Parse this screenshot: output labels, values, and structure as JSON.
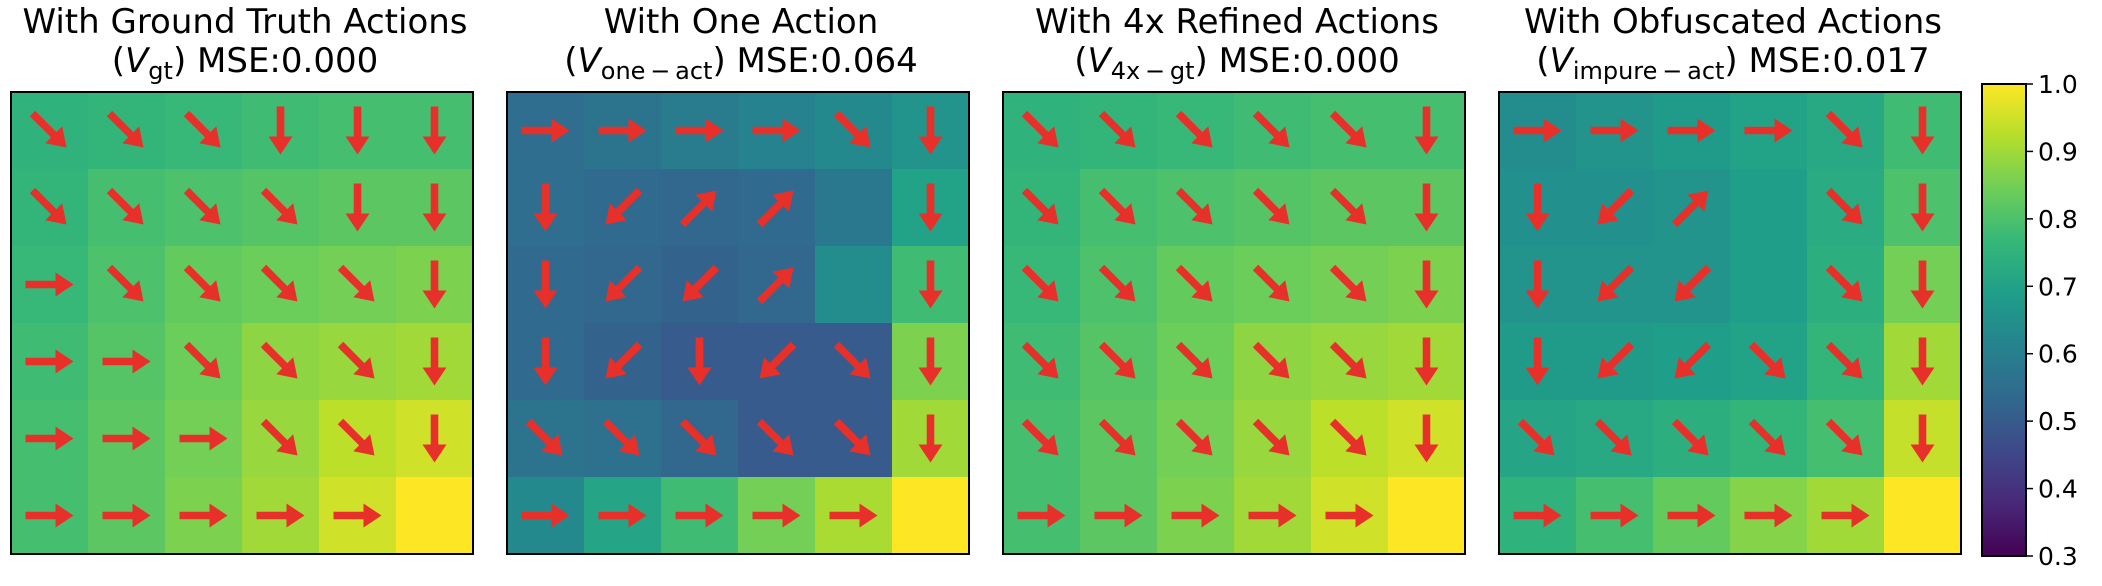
{
  "colors": {
    "arrow": "#e8302a",
    "frame": "#000000",
    "colormap": [
      "#440154",
      "#482878",
      "#3e4989",
      "#31688e",
      "#26828e",
      "#1f9e89",
      "#35b779",
      "#6ece58",
      "#b5de2b",
      "#fde725"
    ]
  },
  "chart_data": [
    {
      "type": "heatmap",
      "panel": "gt",
      "title_line1": "With Ground Truth Actions",
      "title_var": "V",
      "title_sub": "gt",
      "title_mse": "MSE:0.000",
      "grid_size": [
        6,
        6
      ],
      "values": [
        [
          0.75,
          0.76,
          0.77,
          0.78,
          0.79,
          0.79
        ],
        [
          0.76,
          0.79,
          0.8,
          0.81,
          0.82,
          0.82
        ],
        [
          0.77,
          0.8,
          0.83,
          0.84,
          0.85,
          0.86
        ],
        [
          0.78,
          0.81,
          0.84,
          0.88,
          0.89,
          0.9
        ],
        [
          0.79,
          0.82,
          0.85,
          0.89,
          0.93,
          0.95
        ],
        [
          0.79,
          0.82,
          0.86,
          0.9,
          0.95,
          1.0
        ]
      ],
      "actions": [
        [
          "SE",
          "SE",
          "SE",
          "S",
          "S",
          "S"
        ],
        [
          "SE",
          "SE",
          "SE",
          "SE",
          "S",
          "S"
        ],
        [
          "E",
          "SE",
          "SE",
          "SE",
          "SE",
          "S"
        ],
        [
          "E",
          "E",
          "SE",
          "SE",
          "SE",
          "S"
        ],
        [
          "E",
          "E",
          "E",
          "SE",
          "SE",
          "S"
        ],
        [
          "E",
          "E",
          "E",
          "E",
          "E",
          ""
        ]
      ]
    },
    {
      "type": "heatmap",
      "panel": "one-act",
      "title_line1": "With One Action",
      "title_var": "V",
      "title_sub": "one − act",
      "title_mse": "MSE:0.064",
      "grid_size": [
        6,
        6
      ],
      "values": [
        [
          0.55,
          0.57,
          0.59,
          0.61,
          0.63,
          0.66
        ],
        [
          0.55,
          0.54,
          0.53,
          0.54,
          0.58,
          0.7
        ],
        [
          0.54,
          0.53,
          0.52,
          0.53,
          0.64,
          0.78
        ],
        [
          0.54,
          0.52,
          0.5,
          0.5,
          0.5,
          0.86
        ],
        [
          0.57,
          0.56,
          0.53,
          0.5,
          0.5,
          0.9
        ],
        [
          0.63,
          0.71,
          0.78,
          0.85,
          0.91,
          1.0
        ]
      ],
      "actions": [
        [
          "E",
          "E",
          "E",
          "E",
          "SE",
          "S"
        ],
        [
          "S",
          "SW",
          "NE",
          "NE",
          "",
          "S"
        ],
        [
          "S",
          "SW",
          "SW",
          "NE",
          "",
          "S"
        ],
        [
          "S",
          "SW",
          "S",
          "SW",
          "SE",
          "S"
        ],
        [
          "SE",
          "SE",
          "SE",
          "SE",
          "SE",
          "S"
        ],
        [
          "E",
          "E",
          "E",
          "E",
          "E",
          ""
        ]
      ]
    },
    {
      "type": "heatmap",
      "panel": "4x-gt",
      "title_line1": "With 4x Refined Actions",
      "title_var": "V",
      "title_sub": "4x − gt",
      "title_mse": "MSE:0.000",
      "grid_size": [
        6,
        6
      ],
      "values": [
        [
          0.75,
          0.76,
          0.77,
          0.78,
          0.79,
          0.79
        ],
        [
          0.76,
          0.79,
          0.8,
          0.81,
          0.82,
          0.82
        ],
        [
          0.77,
          0.8,
          0.83,
          0.84,
          0.85,
          0.86
        ],
        [
          0.78,
          0.81,
          0.84,
          0.88,
          0.89,
          0.9
        ],
        [
          0.79,
          0.82,
          0.85,
          0.89,
          0.93,
          0.95
        ],
        [
          0.79,
          0.82,
          0.86,
          0.9,
          0.95,
          1.0
        ]
      ],
      "actions": [
        [
          "SE",
          "SE",
          "SE",
          "SE",
          "SE",
          "S"
        ],
        [
          "SE",
          "SE",
          "SE",
          "SE",
          "SE",
          "S"
        ],
        [
          "SE",
          "SE",
          "SE",
          "SE",
          "SE",
          "S"
        ],
        [
          "SE",
          "SE",
          "SE",
          "SE",
          "SE",
          "S"
        ],
        [
          "SE",
          "SE",
          "SE",
          "SE",
          "SE",
          "S"
        ],
        [
          "E",
          "E",
          "E",
          "E",
          "E",
          ""
        ]
      ]
    },
    {
      "type": "heatmap",
      "panel": "impure-act",
      "title_line1": "With Obfuscated Actions",
      "title_var": "V",
      "title_sub": "impure − act",
      "title_mse": "MSE:0.017",
      "grid_size": [
        6,
        6
      ],
      "values": [
        [
          0.64,
          0.66,
          0.68,
          0.7,
          0.72,
          0.78
        ],
        [
          0.65,
          0.65,
          0.66,
          0.69,
          0.73,
          0.8
        ],
        [
          0.66,
          0.66,
          0.66,
          0.69,
          0.74,
          0.85
        ],
        [
          0.68,
          0.68,
          0.69,
          0.7,
          0.76,
          0.9
        ],
        [
          0.71,
          0.72,
          0.74,
          0.76,
          0.79,
          0.94
        ],
        [
          0.75,
          0.79,
          0.83,
          0.87,
          0.9,
          1.0
        ]
      ],
      "actions": [
        [
          "E",
          "E",
          "E",
          "E",
          "SE",
          "S"
        ],
        [
          "S",
          "SW",
          "NE",
          "",
          "SE",
          "S"
        ],
        [
          "S",
          "SW",
          "SW",
          "",
          "SE",
          "S"
        ],
        [
          "S",
          "SW",
          "SW",
          "SE",
          "SE",
          "S"
        ],
        [
          "SE",
          "SE",
          "SE",
          "SE",
          "SE",
          "S"
        ],
        [
          "E",
          "E",
          "E",
          "E",
          "E",
          ""
        ]
      ]
    }
  ],
  "colorbar": {
    "vmin": 0.3,
    "vmax": 1.0,
    "ticks": [
      "0.3",
      "0.4",
      "0.5",
      "0.6",
      "0.7",
      "0.8",
      "0.9",
      "1.0"
    ]
  }
}
